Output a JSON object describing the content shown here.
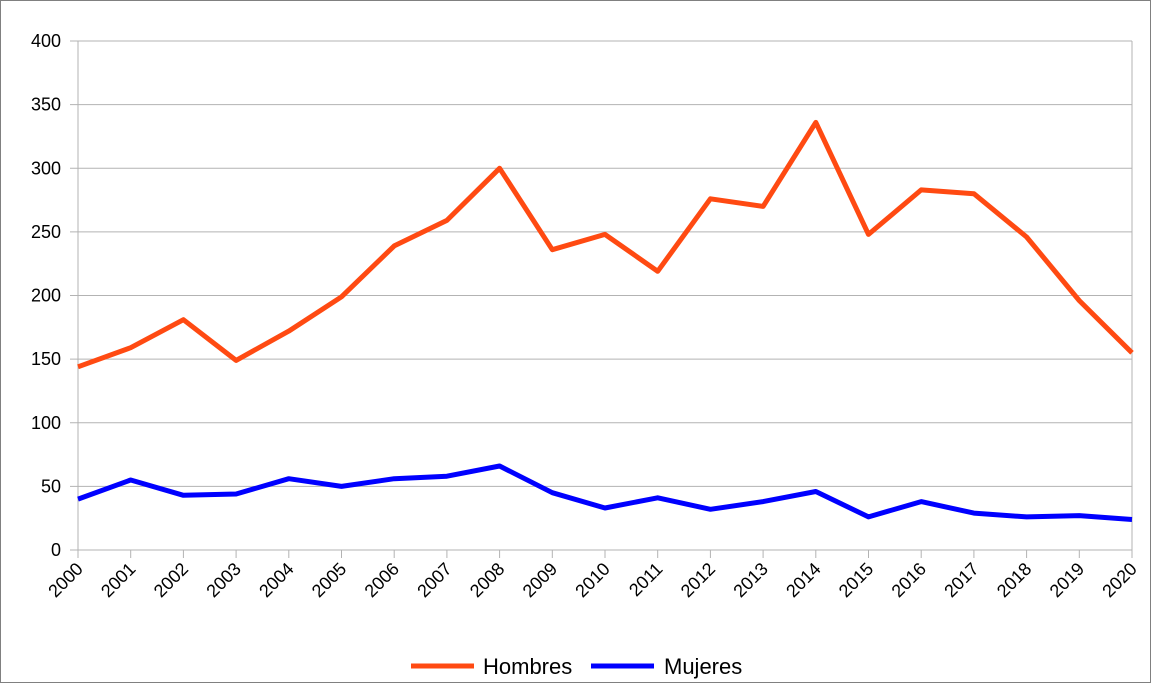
{
  "chart_data": {
    "type": "line",
    "title": "",
    "xlabel": "",
    "ylabel": "",
    "x": [
      "2000",
      "2001",
      "2002",
      "2003",
      "2004",
      "2005",
      "2006",
      "2007",
      "2008",
      "2009",
      "2010",
      "2011",
      "2012",
      "2013",
      "2014",
      "2015",
      "2016",
      "2017",
      "2018",
      "2019",
      "2020"
    ],
    "ylim": [
      0,
      400
    ],
    "yticks": [
      "0",
      "50",
      "100",
      "150",
      "200",
      "250",
      "300",
      "350",
      "400"
    ],
    "grid": true,
    "legend_position": "bottom",
    "series": [
      {
        "name": "Hombres",
        "color": "#ff4a12",
        "values": [
          144,
          159,
          181,
          149,
          172,
          199,
          239,
          259,
          300,
          236,
          248,
          219,
          276,
          270,
          336,
          248,
          283,
          280,
          246,
          196,
          155
        ]
      },
      {
        "name": "Mujeres",
        "color": "#0000ff",
        "values": [
          40,
          55,
          43,
          44,
          56,
          50,
          56,
          58,
          66,
          45,
          33,
          41,
          32,
          38,
          46,
          26,
          38,
          29,
          26,
          27,
          24
        ]
      }
    ]
  }
}
